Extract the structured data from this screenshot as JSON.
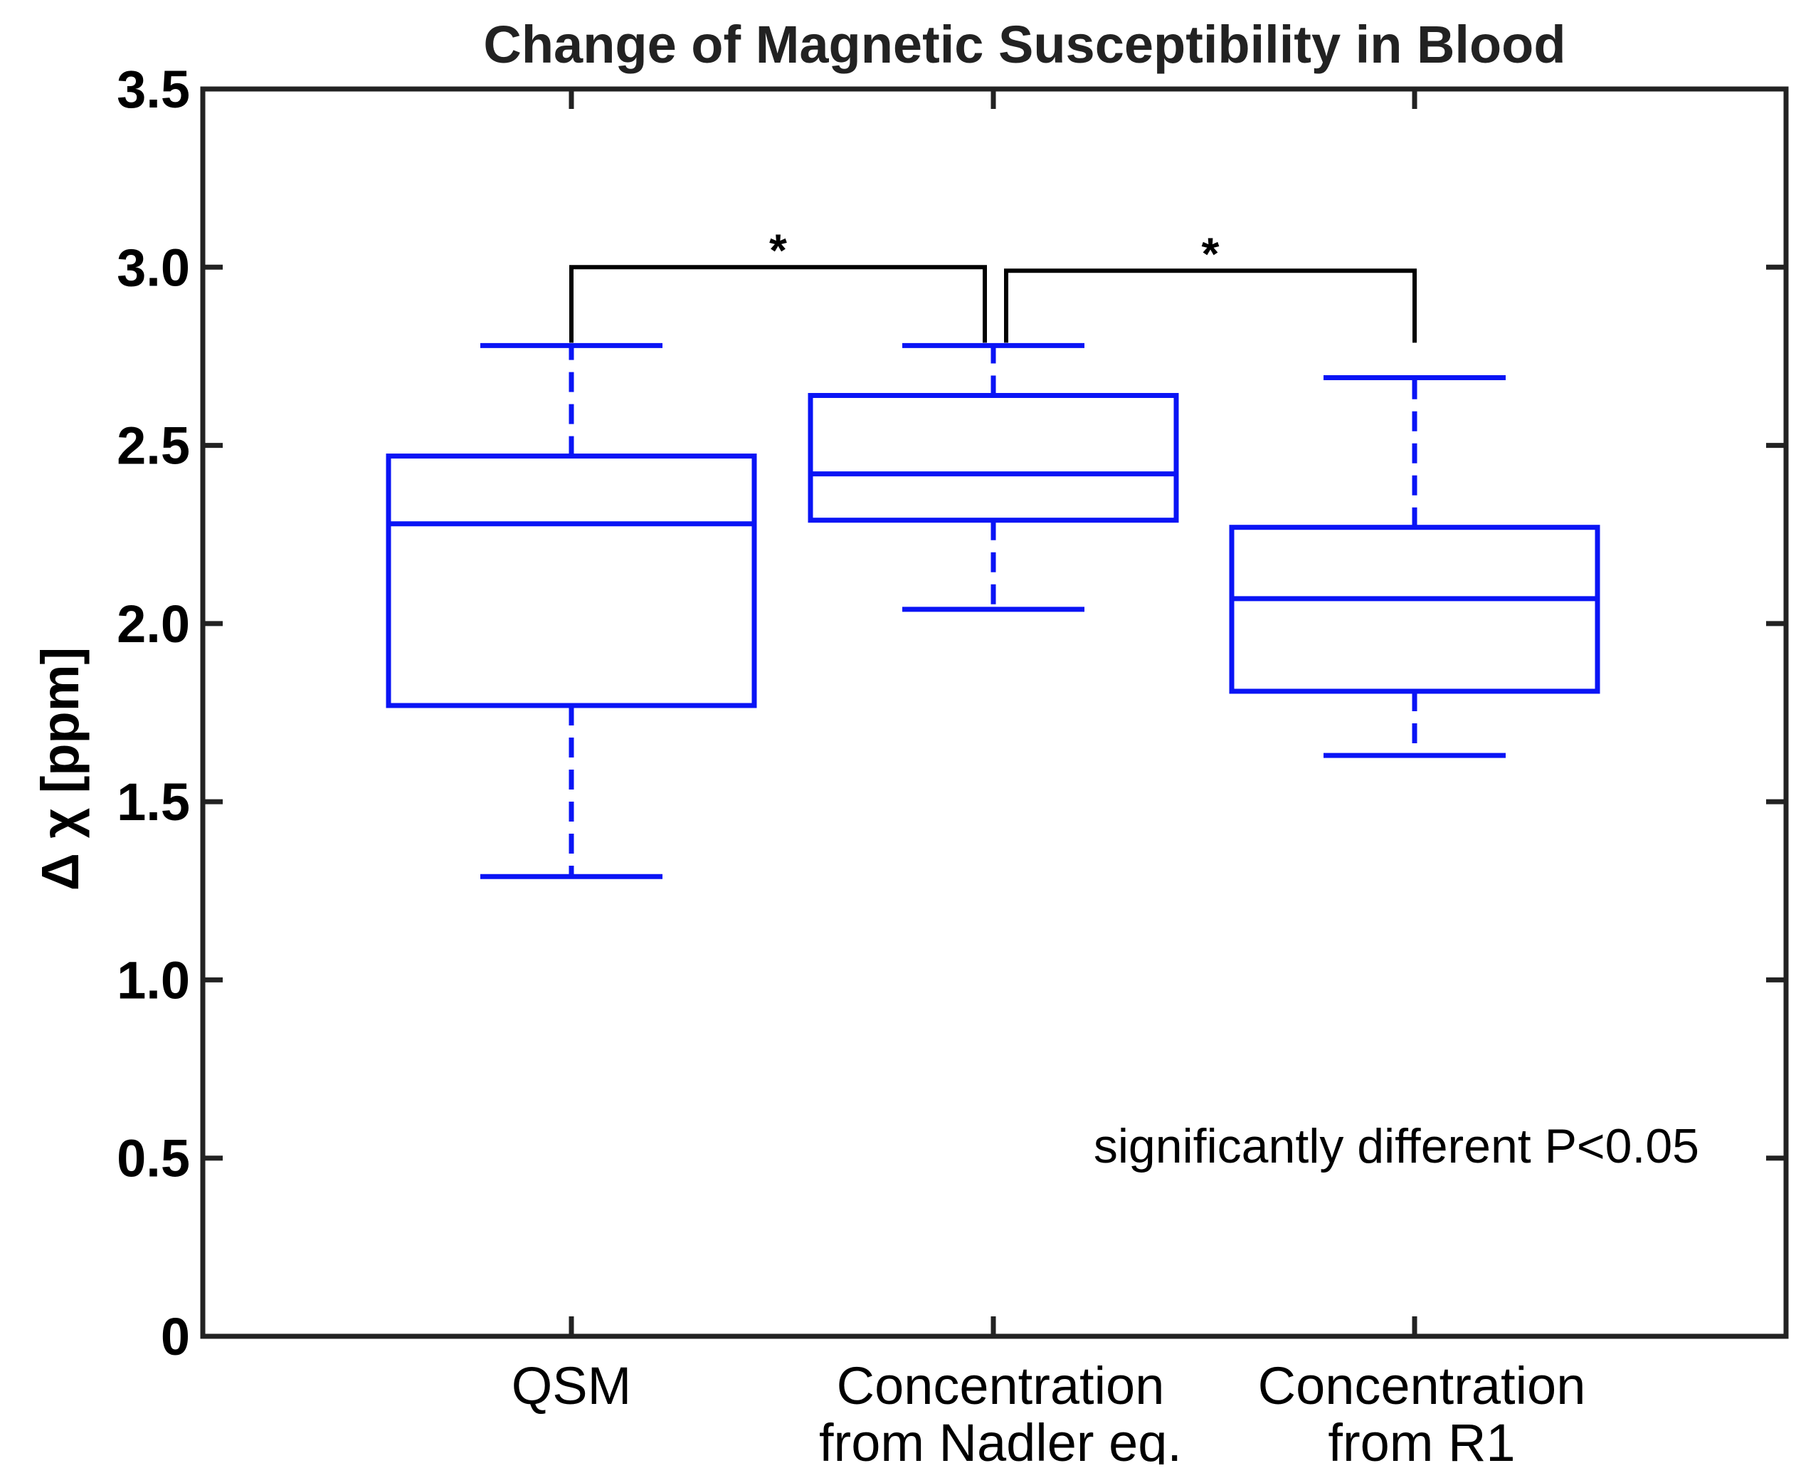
{
  "chart_data": {
    "type": "box",
    "title": "Change of Magnetic Susceptibility in Blood",
    "xlabel": "",
    "ylabel": "Δ χ [ppm]",
    "ylim": [
      0,
      3.5
    ],
    "yticks": [
      {
        "value": 0,
        "label": "0"
      },
      {
        "value": 0.5,
        "label": "0.5"
      },
      {
        "value": 1.0,
        "label": "1.0"
      },
      {
        "value": 1.5,
        "label": "1.5"
      },
      {
        "value": 2.0,
        "label": "2.0"
      },
      {
        "value": 2.5,
        "label": "2.5"
      },
      {
        "value": 3.0,
        "label": "3.0"
      },
      {
        "value": 3.5,
        "label": "3.5"
      }
    ],
    "categories": [
      {
        "lines": [
          "QSM"
        ]
      },
      {
        "lines": [
          "Concentration",
          "from Nadler eq."
        ]
      },
      {
        "lines": [
          "Concentration",
          "from R1"
        ]
      }
    ],
    "boxes": [
      {
        "whisker_low": 1.29,
        "q1": 1.77,
        "median": 2.28,
        "q3": 2.47,
        "whisker_high": 2.78
      },
      {
        "whisker_low": 2.04,
        "q1": 2.29,
        "median": 2.42,
        "q3": 2.64,
        "whisker_high": 2.78
      },
      {
        "whisker_low": 1.63,
        "q1": 1.81,
        "median": 2.07,
        "q3": 2.27,
        "whisker_high": 2.69
      }
    ],
    "significance": [
      {
        "from": 0,
        "to": 1,
        "label": "*",
        "bracket_y": 3.0,
        "leg_bottom": 2.8
      },
      {
        "from": 1,
        "to": 2,
        "label": "*",
        "bracket_y": 2.99,
        "leg_bottom": 2.8
      }
    ],
    "annotation": "significantly different P<0.05",
    "colors": {
      "box": "#0a14f5",
      "axis": "#222222",
      "bracket": "#000000"
    },
    "grid": false
  }
}
